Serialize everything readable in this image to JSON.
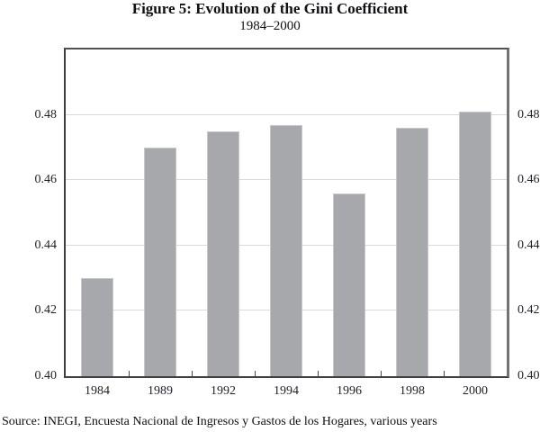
{
  "figure": {
    "title": "Figure 5: Evolution of the Gini Coefficient",
    "subtitle": "1984–2000",
    "source": "Source: INEGI, Encuesta Nacional de Ingresos y Gastos de los Hogares, various years"
  },
  "chart_data": {
    "type": "bar",
    "title": "Figure 5: Evolution of the Gini Coefficient",
    "subtitle": "1984–2000",
    "categories": [
      "1984",
      "1989",
      "1992",
      "1994",
      "1996",
      "1998",
      "2000"
    ],
    "values": [
      0.43,
      0.47,
      0.475,
      0.477,
      0.456,
      0.476,
      0.481
    ],
    "xlabel": "",
    "ylabel": "",
    "ylim": [
      0.4,
      0.5
    ],
    "yticks": [
      0.4,
      0.42,
      0.44,
      0.46,
      0.48
    ],
    "ytick_labels": [
      "0.40",
      "0.42",
      "0.44",
      "0.46",
      "0.48"
    ],
    "grid": "horizontal",
    "legend": "none",
    "axis_labels_on_both_sides": true,
    "bar_color": "#a7a8ac",
    "gridline_color": "#d9d9d9",
    "source": "Source: INEGI, Encuesta Nacional de Ingresos y Gastos de los Hogares, various years"
  }
}
